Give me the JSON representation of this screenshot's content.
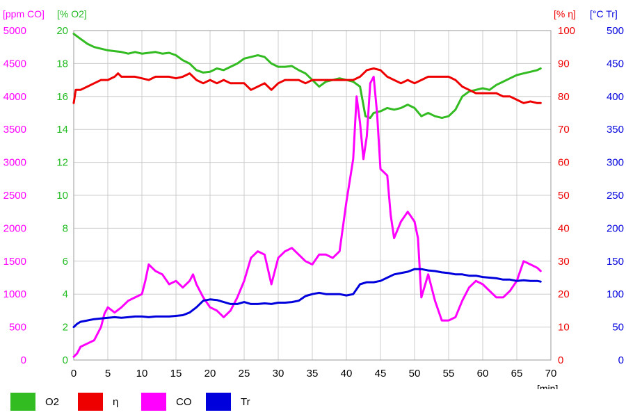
{
  "chart_data": {
    "type": "line",
    "x_unit": "[min]",
    "xlim": [
      0,
      70
    ],
    "x_ticks": [
      "0",
      "5",
      "10",
      "15",
      "20",
      "25",
      "30",
      "35",
      "40",
      "45",
      "50",
      "55",
      "60",
      "65",
      "70"
    ],
    "grid": true,
    "legend_position": "bottom",
    "axes": {
      "co": {
        "unit": "[ppm CO]",
        "color": "#ff00ff",
        "lim": [
          0,
          5000
        ],
        "ticks": [
          "0",
          "500",
          "1000",
          "1500",
          "2000",
          "2500",
          "3000",
          "3500",
          "4000",
          "4500",
          "5000"
        ]
      },
      "o2": {
        "unit": "[% O2]",
        "color": "#22bb22",
        "lim": [
          0,
          20
        ],
        "ticks": [
          "0",
          "2",
          "4",
          "6",
          "8",
          "10",
          "12",
          "14",
          "16",
          "18",
          "20"
        ]
      },
      "eta": {
        "unit": "[% η]",
        "color": "#ee0000",
        "lim": [
          0,
          100
        ],
        "ticks": [
          "0",
          "10",
          "20",
          "30",
          "40",
          "50",
          "60",
          "70",
          "80",
          "90",
          "100"
        ]
      },
      "tr": {
        "unit": "[°C Tr]",
        "color": "#0000dd",
        "lim": [
          0,
          500
        ],
        "ticks": [
          "0",
          "50",
          "100",
          "150",
          "200",
          "250",
          "300",
          "350",
          "400",
          "450",
          "500"
        ]
      }
    },
    "series": [
      {
        "name": "O2",
        "axis": "o2",
        "color": "#33bb22",
        "points": [
          [
            0,
            19.8
          ],
          [
            1,
            19.5
          ],
          [
            2,
            19.2
          ],
          [
            3,
            19.0
          ],
          [
            4,
            18.9
          ],
          [
            5,
            18.8
          ],
          [
            6,
            18.75
          ],
          [
            7,
            18.7
          ],
          [
            8,
            18.6
          ],
          [
            9,
            18.7
          ],
          [
            10,
            18.6
          ],
          [
            11,
            18.65
          ],
          [
            12,
            18.7
          ],
          [
            13,
            18.6
          ],
          [
            14,
            18.65
          ],
          [
            15,
            18.5
          ],
          [
            16,
            18.2
          ],
          [
            17,
            18.0
          ],
          [
            18,
            17.6
          ],
          [
            19,
            17.45
          ],
          [
            20,
            17.5
          ],
          [
            21,
            17.7
          ],
          [
            22,
            17.6
          ],
          [
            23,
            17.8
          ],
          [
            24,
            18.0
          ],
          [
            25,
            18.3
          ],
          [
            26,
            18.4
          ],
          [
            27,
            18.5
          ],
          [
            28,
            18.4
          ],
          [
            29,
            18.0
          ],
          [
            30,
            17.8
          ],
          [
            31,
            17.8
          ],
          [
            32,
            17.85
          ],
          [
            33,
            17.6
          ],
          [
            34,
            17.4
          ],
          [
            35,
            17.0
          ],
          [
            36,
            16.6
          ],
          [
            37,
            16.9
          ],
          [
            38,
            17.0
          ],
          [
            39,
            17.1
          ],
          [
            40,
            17.0
          ],
          [
            41,
            16.9
          ],
          [
            42,
            16.6
          ],
          [
            42.8,
            14.8
          ],
          [
            43.5,
            14.7
          ],
          [
            44,
            15.0
          ],
          [
            45,
            15.1
          ],
          [
            46,
            15.3
          ],
          [
            47,
            15.2
          ],
          [
            48,
            15.3
          ],
          [
            49,
            15.5
          ],
          [
            50,
            15.3
          ],
          [
            51,
            14.8
          ],
          [
            52,
            15.0
          ],
          [
            53,
            14.8
          ],
          [
            54,
            14.7
          ],
          [
            55,
            14.8
          ],
          [
            56,
            15.2
          ],
          [
            57,
            16.0
          ],
          [
            58,
            16.3
          ],
          [
            59,
            16.4
          ],
          [
            60,
            16.5
          ],
          [
            61,
            16.4
          ],
          [
            62,
            16.7
          ],
          [
            63,
            16.9
          ],
          [
            64,
            17.1
          ],
          [
            65,
            17.3
          ],
          [
            66,
            17.4
          ],
          [
            67,
            17.5
          ],
          [
            68,
            17.6
          ],
          [
            68.5,
            17.7
          ]
        ]
      },
      {
        "name": "η",
        "axis": "eta",
        "color": "#ee0000",
        "points": [
          [
            0,
            78
          ],
          [
            0.3,
            82
          ],
          [
            1,
            82
          ],
          [
            2,
            83
          ],
          [
            3,
            84
          ],
          [
            4,
            85
          ],
          [
            5,
            85
          ],
          [
            6,
            86
          ],
          [
            6.5,
            87
          ],
          [
            7,
            86
          ],
          [
            8,
            86
          ],
          [
            9,
            86
          ],
          [
            10,
            85.5
          ],
          [
            11,
            85
          ],
          [
            12,
            86
          ],
          [
            13,
            86
          ],
          [
            14,
            86
          ],
          [
            15,
            85.5
          ],
          [
            16,
            86
          ],
          [
            17,
            87
          ],
          [
            18,
            85
          ],
          [
            19,
            84
          ],
          [
            20,
            85
          ],
          [
            21,
            84
          ],
          [
            22,
            85
          ],
          [
            23,
            84
          ],
          [
            24,
            84
          ],
          [
            25,
            84
          ],
          [
            26,
            82
          ],
          [
            27,
            83
          ],
          [
            28,
            84
          ],
          [
            29,
            82
          ],
          [
            30,
            84
          ],
          [
            31,
            85
          ],
          [
            32,
            85
          ],
          [
            33,
            85
          ],
          [
            34,
            84
          ],
          [
            35,
            85
          ],
          [
            36,
            85
          ],
          [
            37,
            85
          ],
          [
            38,
            85
          ],
          [
            39,
            85
          ],
          [
            40,
            85
          ],
          [
            41,
            85
          ],
          [
            42,
            86
          ],
          [
            43,
            88
          ],
          [
            44,
            88.5
          ],
          [
            45,
            88
          ],
          [
            46,
            86
          ],
          [
            47,
            85
          ],
          [
            48,
            84
          ],
          [
            49,
            85
          ],
          [
            50,
            84
          ],
          [
            51,
            85
          ],
          [
            52,
            86
          ],
          [
            53,
            86
          ],
          [
            54,
            86
          ],
          [
            55,
            86
          ],
          [
            56,
            85
          ],
          [
            57,
            83
          ],
          [
            58,
            82
          ],
          [
            59,
            81
          ],
          [
            60,
            81
          ],
          [
            61,
            81
          ],
          [
            62,
            81
          ],
          [
            63,
            80
          ],
          [
            64,
            80
          ],
          [
            65,
            79
          ],
          [
            66,
            78
          ],
          [
            67,
            78.5
          ],
          [
            68,
            78
          ],
          [
            68.5,
            78
          ]
        ]
      },
      {
        "name": "CO",
        "axis": "co",
        "color": "#ff00ff",
        "points": [
          [
            0,
            50
          ],
          [
            0.5,
            100
          ],
          [
            1,
            200
          ],
          [
            2,
            250
          ],
          [
            3,
            300
          ],
          [
            4,
            500
          ],
          [
            4.5,
            700
          ],
          [
            5,
            800
          ],
          [
            6,
            720
          ],
          [
            7,
            800
          ],
          [
            8,
            900
          ],
          [
            9,
            950
          ],
          [
            10,
            1000
          ],
          [
            10.5,
            1200
          ],
          [
            11,
            1450
          ],
          [
            11.5,
            1400
          ],
          [
            12,
            1350
          ],
          [
            13,
            1300
          ],
          [
            14,
            1150
          ],
          [
            15,
            1200
          ],
          [
            16,
            1100
          ],
          [
            17,
            1200
          ],
          [
            17.5,
            1300
          ],
          [
            18,
            1150
          ],
          [
            19,
            950
          ],
          [
            20,
            800
          ],
          [
            21,
            750
          ],
          [
            22,
            650
          ],
          [
            23,
            750
          ],
          [
            24,
            950
          ],
          [
            25,
            1200
          ],
          [
            26,
            1550
          ],
          [
            27,
            1650
          ],
          [
            28,
            1600
          ],
          [
            29,
            1150
          ],
          [
            30,
            1550
          ],
          [
            31,
            1650
          ],
          [
            32,
            1700
          ],
          [
            33,
            1600
          ],
          [
            34,
            1500
          ],
          [
            35,
            1450
          ],
          [
            36,
            1600
          ],
          [
            37,
            1600
          ],
          [
            38,
            1550
          ],
          [
            39,
            1650
          ],
          [
            40,
            2400
          ],
          [
            41,
            3050
          ],
          [
            41.5,
            4000
          ],
          [
            42,
            3600
          ],
          [
            42.5,
            3050
          ],
          [
            43,
            3400
          ],
          [
            43.5,
            4200
          ],
          [
            44,
            4300
          ],
          [
            44.5,
            3750
          ],
          [
            45,
            2900
          ],
          [
            46,
            2800
          ],
          [
            46.5,
            2200
          ],
          [
            47,
            1850
          ],
          [
            48,
            2100
          ],
          [
            49,
            2250
          ],
          [
            50,
            2100
          ],
          [
            50.5,
            1850
          ],
          [
            51,
            950
          ],
          [
            52,
            1300
          ],
          [
            53,
            900
          ],
          [
            54,
            600
          ],
          [
            55,
            600
          ],
          [
            56,
            650
          ],
          [
            57,
            900
          ],
          [
            58,
            1100
          ],
          [
            59,
            1200
          ],
          [
            60,
            1150
          ],
          [
            61,
            1050
          ],
          [
            62,
            950
          ],
          [
            63,
            950
          ],
          [
            64,
            1050
          ],
          [
            65,
            1200
          ],
          [
            66,
            1500
          ],
          [
            67,
            1450
          ],
          [
            68,
            1400
          ],
          [
            68.5,
            1350
          ]
        ]
      },
      {
        "name": "Tr",
        "axis": "tr",
        "color": "#0000dd",
        "points": [
          [
            0,
            50
          ],
          [
            0.5,
            55
          ],
          [
            1,
            58
          ],
          [
            2,
            60
          ],
          [
            3,
            62
          ],
          [
            4,
            63
          ],
          [
            5,
            64
          ],
          [
            6,
            65
          ],
          [
            7,
            64
          ],
          [
            8,
            65
          ],
          [
            9,
            66
          ],
          [
            10,
            66
          ],
          [
            11,
            65
          ],
          [
            12,
            66
          ],
          [
            13,
            66
          ],
          [
            14,
            66
          ],
          [
            15,
            67
          ],
          [
            16,
            68
          ],
          [
            17,
            72
          ],
          [
            18,
            80
          ],
          [
            19,
            90
          ],
          [
            20,
            92
          ],
          [
            21,
            91
          ],
          [
            22,
            88
          ],
          [
            23,
            85
          ],
          [
            24,
            85
          ],
          [
            25,
            88
          ],
          [
            26,
            85
          ],
          [
            27,
            85
          ],
          [
            28,
            86
          ],
          [
            29,
            85
          ],
          [
            30,
            87
          ],
          [
            31,
            87
          ],
          [
            32,
            88
          ],
          [
            33,
            90
          ],
          [
            34,
            97
          ],
          [
            35,
            100
          ],
          [
            36,
            102
          ],
          [
            37,
            100
          ],
          [
            38,
            100
          ],
          [
            39,
            100
          ],
          [
            40,
            98
          ],
          [
            41,
            100
          ],
          [
            42,
            115
          ],
          [
            43,
            118
          ],
          [
            44,
            118
          ],
          [
            45,
            120
          ],
          [
            46,
            125
          ],
          [
            47,
            130
          ],
          [
            48,
            132
          ],
          [
            49,
            134
          ],
          [
            50,
            138
          ],
          [
            51,
            138
          ],
          [
            52,
            136
          ],
          [
            53,
            135
          ],
          [
            54,
            133
          ],
          [
            55,
            132
          ],
          [
            56,
            130
          ],
          [
            57,
            130
          ],
          [
            58,
            128
          ],
          [
            59,
            128
          ],
          [
            60,
            126
          ],
          [
            61,
            125
          ],
          [
            62,
            124
          ],
          [
            63,
            122
          ],
          [
            64,
            122
          ],
          [
            65,
            120
          ],
          [
            66,
            121
          ],
          [
            67,
            120
          ],
          [
            68,
            120
          ],
          [
            68.5,
            119
          ]
        ]
      }
    ]
  },
  "legend": [
    {
      "label": "O2",
      "color": "#33bb22"
    },
    {
      "label": "η",
      "color": "#ee0000"
    },
    {
      "label": "CO",
      "color": "#ff00ff"
    },
    {
      "label": "Tr",
      "color": "#0000dd"
    }
  ]
}
